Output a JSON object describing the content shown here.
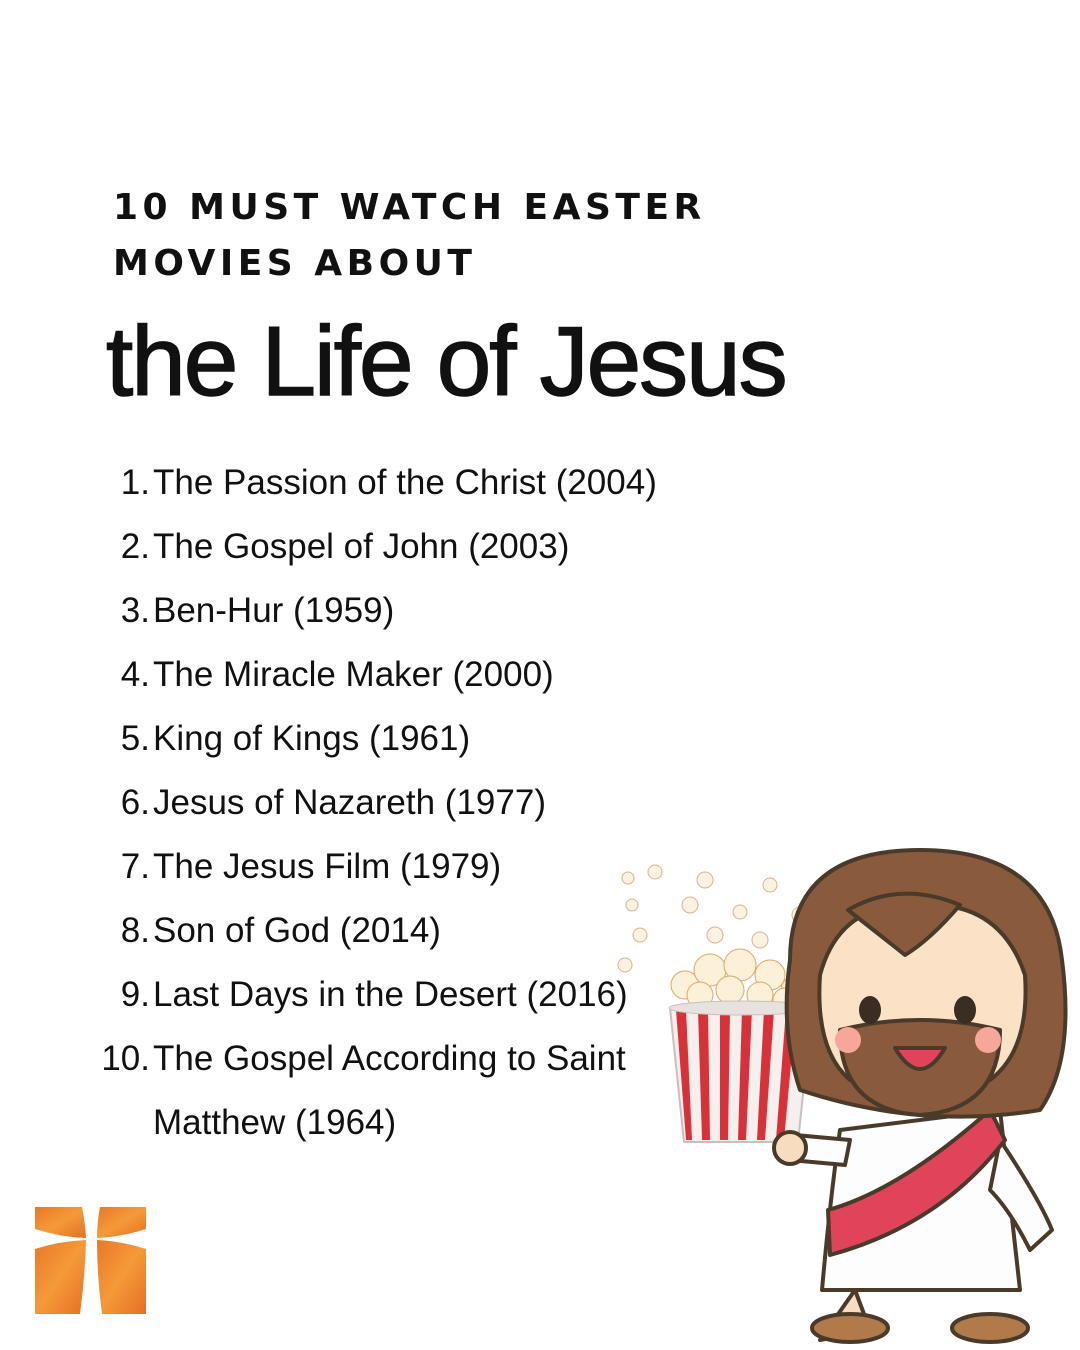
{
  "header": {
    "kicker_line1": "10 MUST WATCH EASTER",
    "kicker_line2": "MOVIES ABOUT",
    "title": "the Life of Jesus"
  },
  "movies": [
    {
      "num": "1.",
      "title": "The Passion of the Christ (2004)"
    },
    {
      "num": "2.",
      "title": " The Gospel of John (2003)"
    },
    {
      "num": "3.",
      "title": "Ben-Hur (1959)"
    },
    {
      "num": "4.",
      "title": "The Miracle Maker (2000)"
    },
    {
      "num": "5.",
      "title": "King of Kings (1961)"
    },
    {
      "num": "6.",
      "title": "Jesus of Nazareth (1977)"
    },
    {
      "num": "7.",
      "title": "The Jesus Film (1979)"
    },
    {
      "num": "8.",
      "title": "Son of God (2014)"
    },
    {
      "num": "9.",
      "title": "Last Days in the Desert (2016)"
    },
    {
      "num": "10.",
      "title": "The Gospel According to Saint Matthew (1964)"
    }
  ],
  "icons": {
    "logo": "orange-cross-logo",
    "illustration": "cartoon-jesus-with-popcorn"
  },
  "colors": {
    "logo_orange": "#f39433",
    "sash_red": "#e0445a",
    "hair_brown": "#8a5a3c",
    "popcorn_stripe": "#d9303a"
  }
}
